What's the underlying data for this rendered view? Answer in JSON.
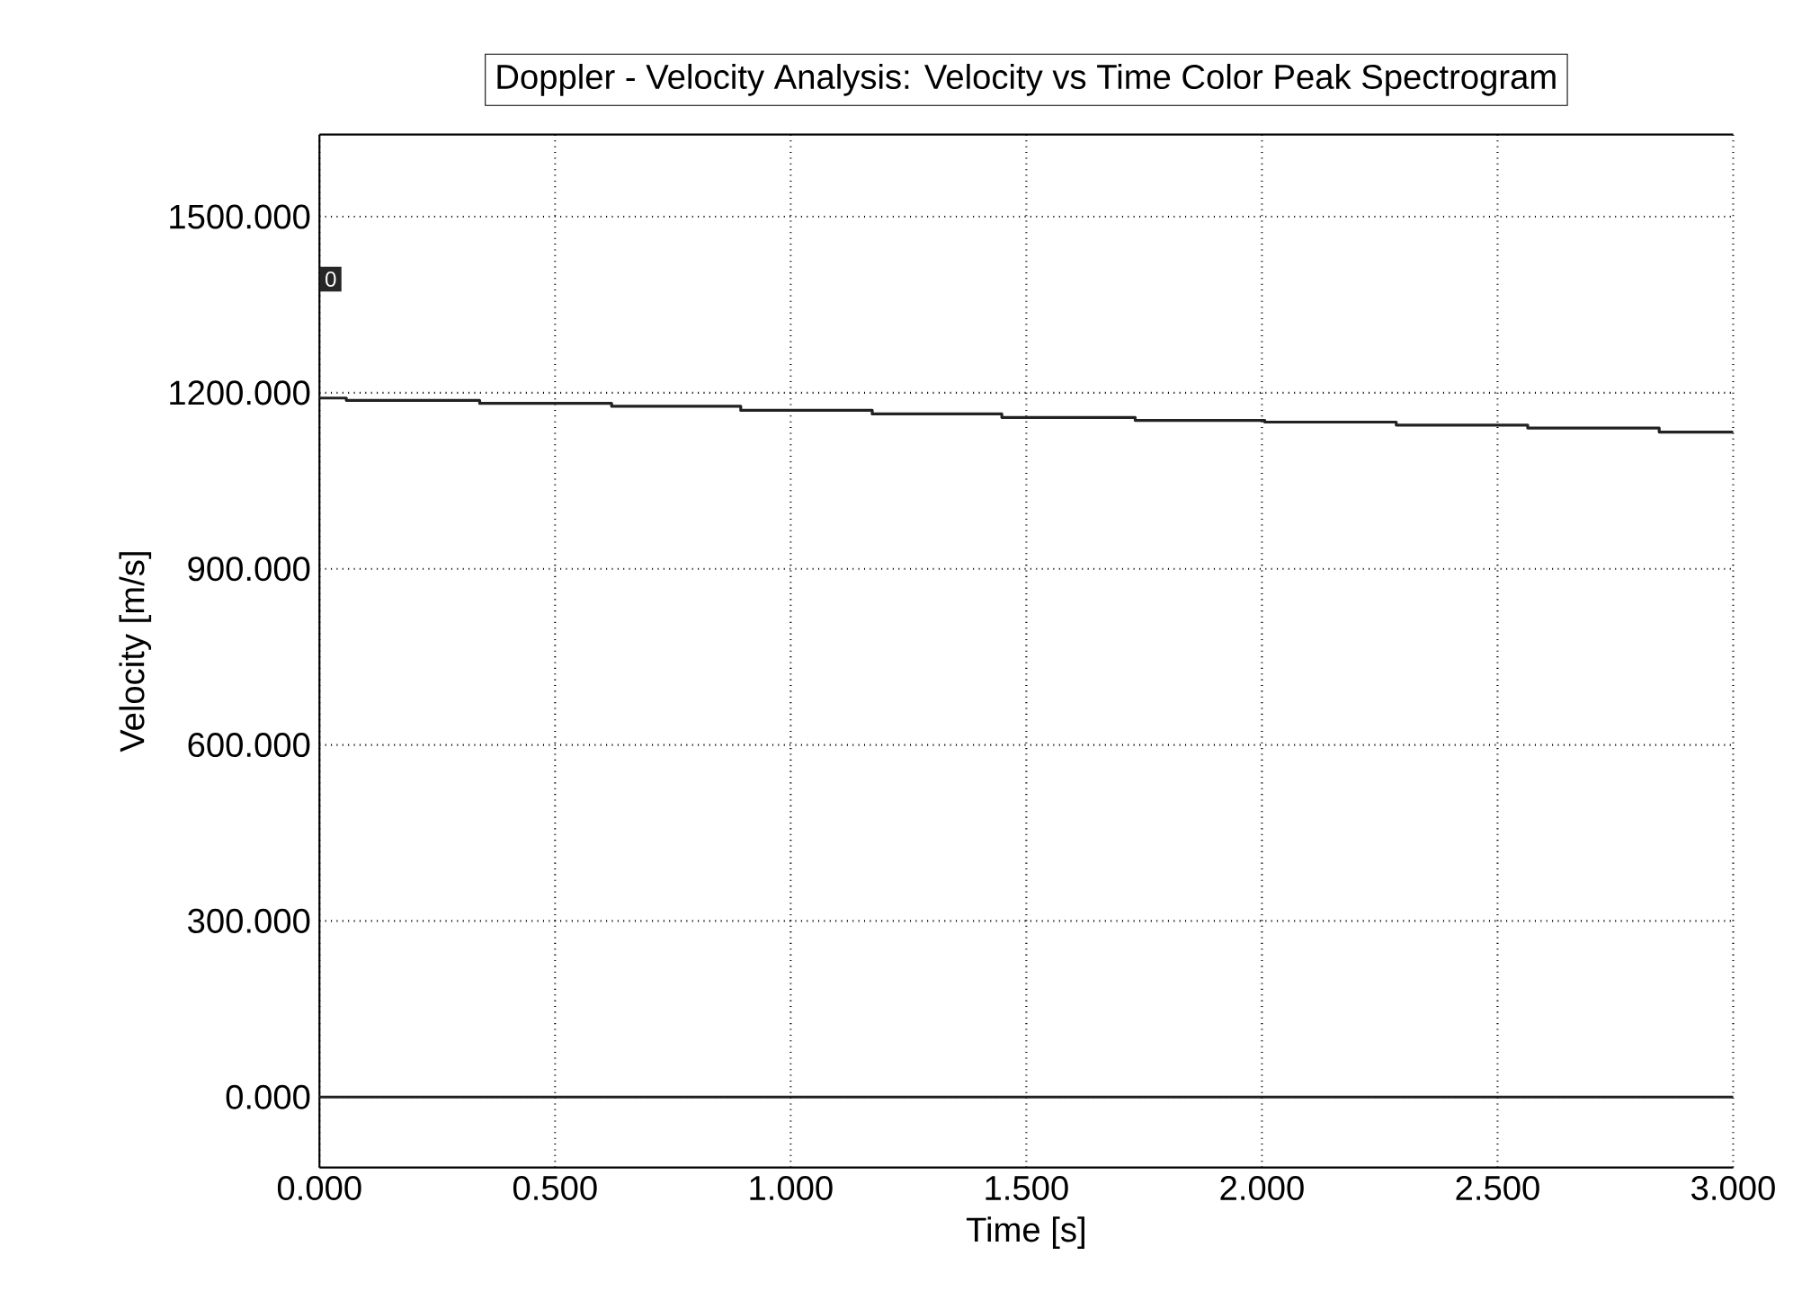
{
  "chart_data": {
    "type": "step",
    "title": "Doppler - Velocity Analysis: Velocity vs Time Color Peak Spectrogram",
    "xlabel": "Time [s]",
    "ylabel": "Velocity [m/s]",
    "annotations": [
      "0"
    ],
    "xlim": [
      0,
      3
    ],
    "xticks": [
      {
        "value": 0,
        "label": "0.000"
      },
      {
        "value": 0.5,
        "label": "0.500"
      },
      {
        "value": 1,
        "label": "1.000"
      },
      {
        "value": 1.5,
        "label": "1.500"
      },
      {
        "value": 2,
        "label": "2.000"
      },
      {
        "value": 2.5,
        "label": "2.500"
      },
      {
        "value": 3,
        "label": "3.000"
      }
    ],
    "ylim": [
      -120,
      1640
    ],
    "yticks": [
      {
        "value": 0,
        "label": "0.000"
      },
      {
        "value": 300,
        "label": "300.000"
      },
      {
        "value": 600,
        "label": "600.000"
      },
      {
        "value": 900,
        "label": "900.000"
      },
      {
        "value": 1200,
        "label": "1200.000"
      },
      {
        "value": 1500,
        "label": "1500.000"
      }
    ],
    "grid": true,
    "line_style": "solid",
    "series": [
      {
        "color": "#222222",
        "x": [
          0,
          0.057,
          0.34,
          0.62,
          0.894,
          1.173,
          1.448,
          1.731,
          2.006,
          2.285,
          2.564,
          2.843,
          3.0
        ],
        "values": [
          1191,
          1187,
          1182,
          1177,
          1170,
          1164,
          1158,
          1153,
          1150,
          1145,
          1140,
          1133,
          1133
        ]
      },
      {
        "color": "#222222",
        "x": [
          0,
          3.0
        ],
        "values": [
          0,
          0
        ]
      }
    ]
  }
}
